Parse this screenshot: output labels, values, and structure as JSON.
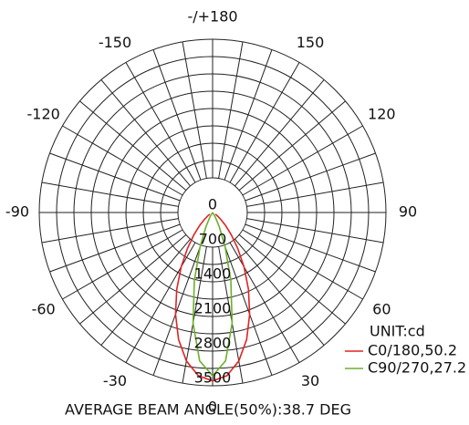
{
  "chart_data": {
    "type": "polar",
    "theta": [
      -60,
      -55,
      -50,
      -45,
      -40,
      -35,
      -30,
      -25,
      -20,
      -15,
      -10,
      -5,
      0,
      5,
      10,
      15,
      20,
      25,
      30,
      35,
      40,
      45,
      50,
      55,
      60
    ],
    "series": [
      {
        "name": "C0/180,50.2",
        "color": "#e02424",
        "values": [
          65,
          122,
          217,
          367,
          585,
          884,
          1266,
          1711,
          2189,
          2657,
          3046,
          3308,
          3400,
          3308,
          3046,
          2657,
          2189,
          1711,
          1266,
          884,
          585,
          367,
          217,
          122,
          65
        ]
      },
      {
        "name": "C90/270,27.2",
        "color": "#6cb02a",
        "values": [
          0,
          0,
          0,
          0,
          0,
          33,
          113,
          317,
          737,
          1420,
          2271,
          3007,
          3300,
          3007,
          2271,
          1420,
          737,
          317,
          113,
          33,
          0,
          0,
          0,
          0,
          0
        ]
      }
    ],
    "rlim": [
      0,
      3500
    ],
    "rticks": [
      0,
      700,
      1400,
      2100,
      2800,
      3500
    ],
    "thetaticks": [
      {
        "value": 180,
        "label": "-/+180"
      },
      150,
      120,
      90,
      60,
      30,
      0,
      -30,
      -60,
      -90,
      -120,
      -150
    ],
    "unit_label": "UNIT:cd",
    "footer": "AVERAGE BEAM ANGLE(50%):38.7 DEG"
  }
}
